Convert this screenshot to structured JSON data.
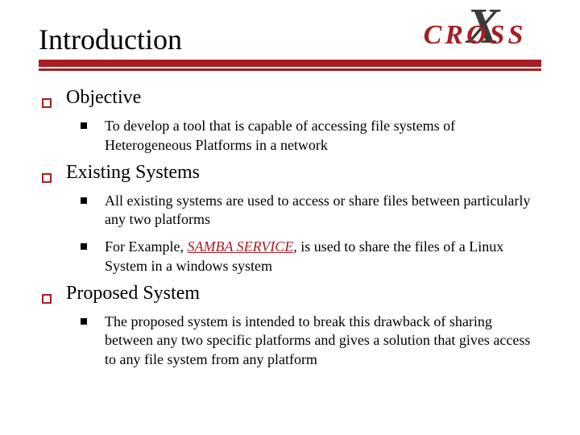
{
  "colors": {
    "accent": "#a61e22",
    "text": "#000000",
    "logo_x": "#3a3a3a",
    "background": "#ffffff"
  },
  "typography": {
    "title_fontsize": 36,
    "l1_fontsize": 24,
    "l2_fontsize": 18,
    "font_family": "Times New Roman"
  },
  "logo": {
    "text": "CROSS",
    "glyph": "X"
  },
  "title": "Introduction",
  "sections": [
    {
      "heading": "Objective",
      "items": [
        {
          "pre": "To develop a tool that is capable of accessing file systems of Heterogeneous Platforms  in a network",
          "emph": "",
          "post": ""
        }
      ]
    },
    {
      "heading": "Existing Systems",
      "items": [
        {
          "pre": "All existing systems are used to access or share files between particularly any two platforms",
          "emph": "",
          "post": ""
        },
        {
          "pre": " For Example, ",
          "emph": "SAMBA SERVICE",
          "post": ", is used to share the files of a Linux System in a windows system"
        }
      ]
    },
    {
      "heading": "Proposed System",
      "items": [
        {
          "pre": "The proposed system is intended to break this drawback of sharing between any two specific platforms and gives a solution that gives access to any file system from any platform",
          "emph": "",
          "post": ""
        }
      ]
    }
  ]
}
